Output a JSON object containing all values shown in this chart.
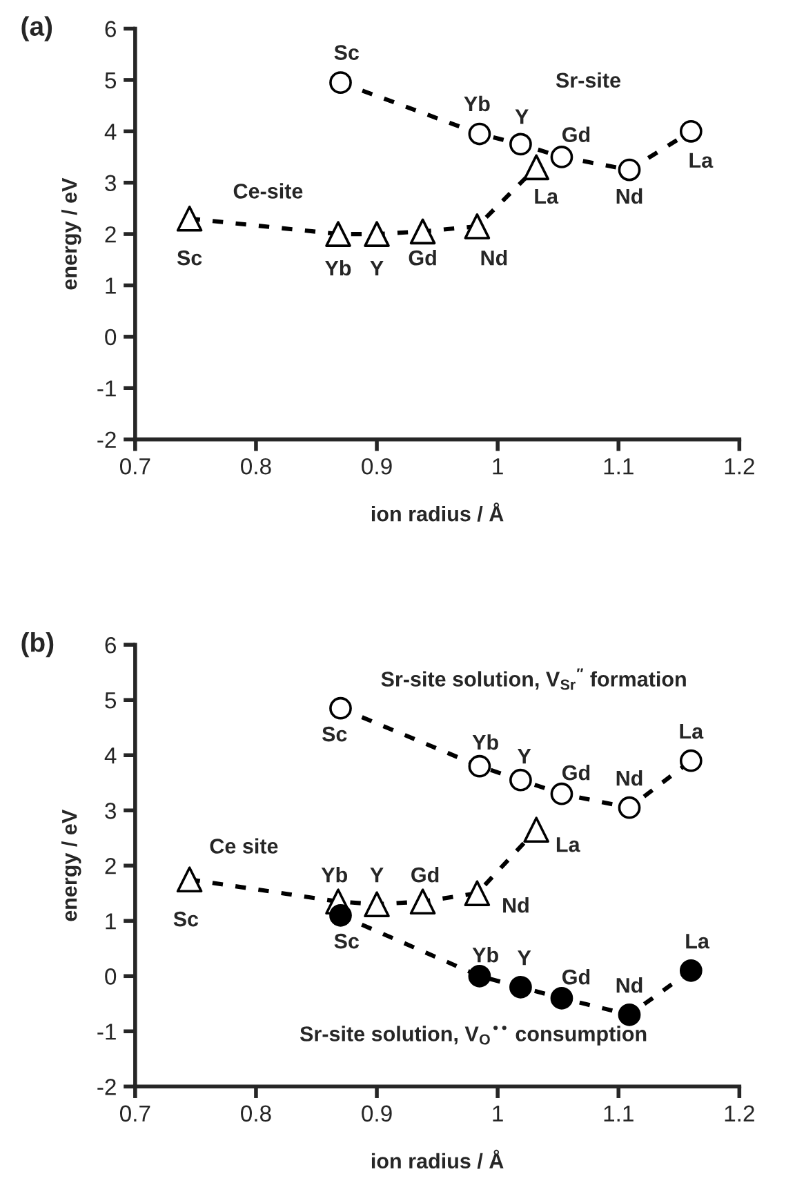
{
  "chart_data": [
    {
      "type": "line",
      "title": "(a)",
      "xlabel": "ion radius / Å",
      "ylabel": "energy / eV",
      "xlim": [
        0.7,
        1.2
      ],
      "xticks": [
        0.7,
        0.8,
        0.9,
        {
          "value": 1.0,
          "label": "1"
        },
        1.1,
        1.2
      ],
      "ylim": [
        -2,
        6
      ],
      "yticks": [
        -2,
        -1,
        0,
        1,
        2,
        3,
        4,
        5,
        6
      ],
      "grid": false,
      "line_style": "dashed",
      "series": [
        {
          "color": "#000000",
          "marker": "triangle",
          "x": [
            0.745,
            0.868,
            0.9,
            0.938,
            0.983,
            1.032
          ],
          "values": [
            2.3,
            2.0,
            2.0,
            2.05,
            2.15,
            3.3
          ]
        },
        {
          "color": "#000000",
          "marker": "circle",
          "x": [
            0.87,
            0.985,
            1.019,
            1.053,
            1.109,
            1.16
          ],
          "values": [
            4.95,
            3.95,
            3.75,
            3.5,
            3.25,
            4.0
          ]
        }
      ],
      "annotations": [
        "Ce-site",
        {
          "text": "Sc",
          "x": 0.745,
          "y": 2.3
        },
        {
          "text": "Yb",
          "x": 0.868,
          "y": 2.0
        },
        {
          "text": "Y",
          "x": 0.9,
          "y": 2.0
        },
        {
          "text": "Gd",
          "x": 0.938,
          "y": 2.05
        },
        {
          "text": "Nd",
          "x": 0.983,
          "y": 2.15
        },
        {
          "text": "La",
          "x": 1.032,
          "y": 3.3
        },
        "Sr-site",
        {
          "text": "Sc",
          "x": 0.87,
          "y": 4.95
        },
        {
          "text": "Yb",
          "x": 0.985,
          "y": 3.95
        },
        {
          "text": "Y",
          "x": 1.019,
          "y": 3.75
        },
        {
          "text": "Gd",
          "x": 1.053,
          "y": 3.5
        },
        {
          "text": "Nd",
          "x": 1.109,
          "y": 3.25
        },
        {
          "text": "La",
          "x": 1.16,
          "y": 4.0
        }
      ]
    },
    {
      "type": "line",
      "title": "(b)",
      "xlabel": "ion radius / Å",
      "ylabel": "energy / eV",
      "xlim": [
        0.7,
        1.2
      ],
      "xticks": [
        0.7,
        0.8,
        0.9,
        {
          "value": 1.0,
          "label": "1"
        },
        1.1,
        1.2
      ],
      "ylim": [
        -2,
        6
      ],
      "yticks": [
        -2,
        -1,
        0,
        1,
        2,
        3,
        4,
        5,
        6
      ],
      "grid": false,
      "line_style": "dashed",
      "series": [
        {
          "color": "#000000",
          "marker": "circle",
          "x": [
            0.87,
            0.985,
            1.019,
            1.053,
            1.109,
            1.16
          ],
          "values": [
            4.85,
            3.8,
            3.55,
            3.3,
            3.05,
            3.9
          ]
        },
        {
          "color": "#000000",
          "marker": "triangle",
          "x": [
            0.745,
            0.868,
            0.9,
            0.938,
            0.983,
            1.032
          ],
          "values": [
            1.75,
            1.35,
            1.3,
            1.35,
            1.5,
            2.65
          ]
        },
        {
          "color": "#000000",
          "marker": "circle",
          "x": [
            0.87,
            0.985,
            1.019,
            1.053,
            1.109,
            1.16
          ],
          "values": [
            1.1,
            0.0,
            -0.2,
            -0.4,
            -0.7,
            0.1
          ]
        }
      ],
      "annotations": [
        "Sr-site solution, V$_{Sr}$$^{″}$ formation",
        {
          "text": "Sc",
          "x": 0.87,
          "y": 4.85
        },
        {
          "text": "Yb",
          "x": 0.985,
          "y": 3.8
        },
        {
          "text": "Y",
          "x": 1.019,
          "y": 3.55
        },
        {
          "text": "Gd",
          "x": 1.053,
          "y": 3.3
        },
        {
          "text": "Nd",
          "x": 1.109,
          "y": 3.05
        },
        {
          "text": "La",
          "x": 1.16,
          "y": 3.9
        },
        "Ce site",
        {
          "text": "Sc",
          "x": 0.745,
          "y": 1.75
        },
        {
          "text": "Yb",
          "x": 0.868,
          "y": 1.35
        },
        {
          "text": "Y",
          "x": 0.9,
          "y": 1.3
        },
        {
          "text": "Gd",
          "x": 0.938,
          "y": 1.35
        },
        {
          "text": "Nd",
          "x": 0.983,
          "y": 1.5
        },
        {
          "text": "La",
          "x": 1.032,
          "y": 2.65
        },
        {
          "text": "Sc",
          "x": 0.87,
          "y": 1.1
        },
        {
          "text": "Yb",
          "x": 0.985,
          "y": 0.0
        },
        {
          "text": "Y",
          "x": 1.019,
          "y": -0.2
        },
        {
          "text": "Gd",
          "x": 1.053,
          "y": -0.4
        },
        {
          "text": "Nd",
          "x": 1.109,
          "y": -0.7
        },
        {
          "text": "La",
          "x": 1.16,
          "y": 0.1
        },
        "Sr-site solution, V$_{O}$$^{••}$ consumption"
      ]
    }
  ]
}
